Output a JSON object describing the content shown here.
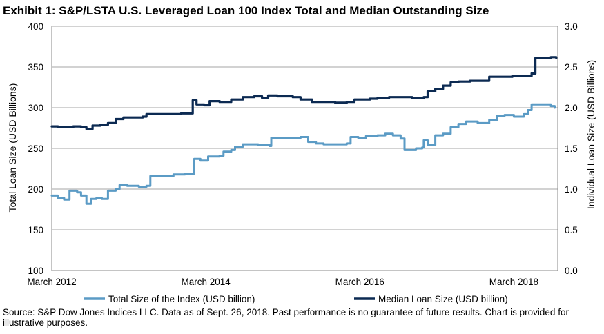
{
  "title": "Exhibit 1: S&P/LSTA U.S. Leveraged Loan 100 Index Total and Median Outstanding Size",
  "source": "Source: S&P Dow Jones Indices LLC. Data as of Sept. 26, 2018. Past performance is no guarantee of future results. Chart is provided for illustrative purposes.",
  "chart_data": {
    "type": "line",
    "ylabel": "Total Loan Size (USD Billions)",
    "y2label": "Individual Loan Size (USD Billions)",
    "ylim": [
      100,
      400
    ],
    "y2lim": [
      0.0,
      3.0
    ],
    "yticks": [
      "100",
      "150",
      "200",
      "250",
      "300",
      "350",
      "400"
    ],
    "y2ticks": [
      "0.0",
      "0.5",
      "1.0",
      "1.5",
      "2.0",
      "2.5",
      "3.0"
    ],
    "xlim": [
      2012.17,
      2018.74
    ],
    "xticks": [
      {
        "label": "March 2012",
        "x": 2012.17
      },
      {
        "label": "March 2014",
        "x": 2014.17
      },
      {
        "label": "March 2016",
        "x": 2016.17
      },
      {
        "label": "March 2018",
        "x": 2018.17
      }
    ],
    "grid": "horizontal",
    "legend_position": "bottom",
    "series": [
      {
        "name": "Total Size of the Index (USD billion)",
        "axis": "left",
        "color": "#5b9bc5",
        "points": [
          [
            2012.17,
            192
          ],
          [
            2012.25,
            189
          ],
          [
            2012.33,
            187
          ],
          [
            2012.4,
            198
          ],
          [
            2012.5,
            196
          ],
          [
            2012.55,
            192
          ],
          [
            2012.62,
            182
          ],
          [
            2012.68,
            188
          ],
          [
            2012.75,
            189
          ],
          [
            2012.82,
            188
          ],
          [
            2012.9,
            198
          ],
          [
            2013.0,
            200
          ],
          [
            2013.05,
            205
          ],
          [
            2013.15,
            204
          ],
          [
            2013.3,
            203
          ],
          [
            2013.4,
            204
          ],
          [
            2013.45,
            216
          ],
          [
            2013.6,
            216
          ],
          [
            2013.75,
            218
          ],
          [
            2013.9,
            219
          ],
          [
            2014.0,
            219
          ],
          [
            2014.02,
            237
          ],
          [
            2014.1,
            235
          ],
          [
            2014.2,
            240
          ],
          [
            2014.35,
            241
          ],
          [
            2014.4,
            246
          ],
          [
            2014.5,
            248
          ],
          [
            2014.55,
            252
          ],
          [
            2014.65,
            255
          ],
          [
            2014.85,
            254
          ],
          [
            2015.0,
            253
          ],
          [
            2015.02,
            263
          ],
          [
            2015.2,
            263
          ],
          [
            2015.35,
            263
          ],
          [
            2015.4,
            264
          ],
          [
            2015.5,
            258
          ],
          [
            2015.6,
            256
          ],
          [
            2015.7,
            255
          ],
          [
            2015.85,
            255
          ],
          [
            2016.0,
            256
          ],
          [
            2016.05,
            264
          ],
          [
            2016.15,
            263
          ],
          [
            2016.25,
            265
          ],
          [
            2016.4,
            266
          ],
          [
            2016.5,
            268
          ],
          [
            2016.6,
            266
          ],
          [
            2016.7,
            262
          ],
          [
            2016.75,
            248
          ],
          [
            2016.9,
            250
          ],
          [
            2016.98,
            251
          ],
          [
            2017.0,
            260
          ],
          [
            2017.05,
            254
          ],
          [
            2017.15,
            266
          ],
          [
            2017.25,
            268
          ],
          [
            2017.35,
            276
          ],
          [
            2017.45,
            280
          ],
          [
            2017.55,
            283
          ],
          [
            2017.7,
            281
          ],
          [
            2017.85,
            285
          ],
          [
            2017.95,
            290
          ],
          [
            2018.05,
            291
          ],
          [
            2018.17,
            289
          ],
          [
            2018.3,
            292
          ],
          [
            2018.35,
            297
          ],
          [
            2018.4,
            304
          ],
          [
            2018.55,
            304
          ],
          [
            2018.65,
            302
          ],
          [
            2018.7,
            300
          ]
        ]
      },
      {
        "name": "Median Loan Size (USD billion)",
        "axis": "right",
        "color": "#0c2a52",
        "points": [
          [
            2012.17,
            1.77
          ],
          [
            2012.25,
            1.76
          ],
          [
            2012.35,
            1.76
          ],
          [
            2012.45,
            1.77
          ],
          [
            2012.55,
            1.76
          ],
          [
            2012.62,
            1.74
          ],
          [
            2012.7,
            1.78
          ],
          [
            2012.8,
            1.79
          ],
          [
            2012.9,
            1.81
          ],
          [
            2013.0,
            1.86
          ],
          [
            2013.1,
            1.88
          ],
          [
            2013.2,
            1.88
          ],
          [
            2013.35,
            1.89
          ],
          [
            2013.4,
            1.92
          ],
          [
            2013.55,
            1.92
          ],
          [
            2013.7,
            1.92
          ],
          [
            2013.85,
            1.93
          ],
          [
            2013.97,
            1.93
          ],
          [
            2014.0,
            2.09
          ],
          [
            2014.05,
            2.04
          ],
          [
            2014.15,
            2.03
          ],
          [
            2014.22,
            2.08
          ],
          [
            2014.35,
            2.07
          ],
          [
            2014.5,
            2.1
          ],
          [
            2014.65,
            2.13
          ],
          [
            2014.8,
            2.14
          ],
          [
            2014.9,
            2.12
          ],
          [
            2014.98,
            2.15
          ],
          [
            2015.1,
            2.14
          ],
          [
            2015.3,
            2.13
          ],
          [
            2015.4,
            2.1
          ],
          [
            2015.55,
            2.07
          ],
          [
            2015.7,
            2.07
          ],
          [
            2015.85,
            2.06
          ],
          [
            2016.0,
            2.07
          ],
          [
            2016.1,
            2.1
          ],
          [
            2016.2,
            2.1
          ],
          [
            2016.3,
            2.11
          ],
          [
            2016.4,
            2.12
          ],
          [
            2016.55,
            2.13
          ],
          [
            2016.7,
            2.13
          ],
          [
            2016.85,
            2.12
          ],
          [
            2017.0,
            2.13
          ],
          [
            2017.05,
            2.2
          ],
          [
            2017.15,
            2.23
          ],
          [
            2017.25,
            2.27
          ],
          [
            2017.35,
            2.31
          ],
          [
            2017.45,
            2.32
          ],
          [
            2017.6,
            2.33
          ],
          [
            2017.75,
            2.33
          ],
          [
            2017.85,
            2.38
          ],
          [
            2018.0,
            2.38
          ],
          [
            2018.15,
            2.39
          ],
          [
            2018.3,
            2.39
          ],
          [
            2018.4,
            2.42
          ],
          [
            2018.45,
            2.61
          ],
          [
            2018.55,
            2.61
          ],
          [
            2018.65,
            2.62
          ],
          [
            2018.72,
            2.61
          ]
        ]
      }
    ]
  }
}
